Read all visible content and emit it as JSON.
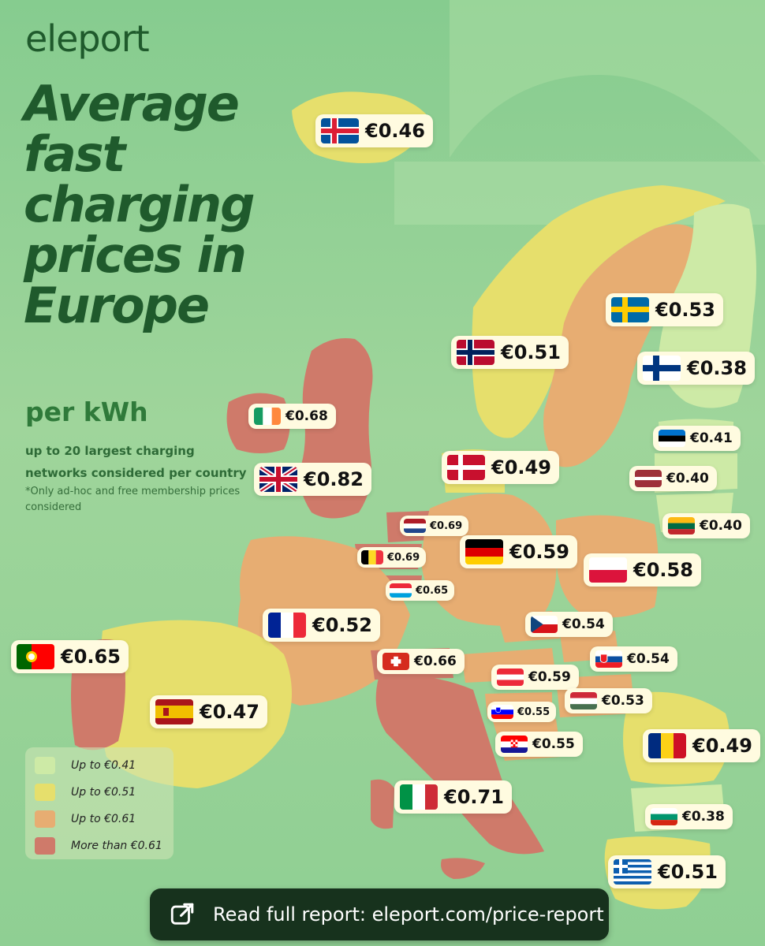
{
  "brand": {
    "logo_text": "eleport"
  },
  "title": "Average fast charging prices in Europe",
  "subtitle": "per kWh",
  "note": "up to 20 largest charging networks considered per country",
  "note_secondary": "*Only ad-hoc and free membership prices considered",
  "legend": [
    {
      "label": "Up to €0.41",
      "color": "#cdeaa6"
    },
    {
      "label": "Up to €0.51",
      "color": "#e6df6c"
    },
    {
      "label": "Up to €0.61",
      "color": "#e7ad72"
    },
    {
      "label": "More than €0.61",
      "color": "#cf7a6a"
    }
  ],
  "countries": [
    {
      "name": "Iceland",
      "flag": "iceland-flag-icon",
      "price": "€0.46"
    },
    {
      "name": "Sweden",
      "flag": "sweden-flag-icon",
      "price": "€0.53"
    },
    {
      "name": "Norway",
      "flag": "norway-flag-icon",
      "price": "€0.51"
    },
    {
      "name": "Finland",
      "flag": "finland-flag-icon",
      "price": "€0.38"
    },
    {
      "name": "Ireland",
      "flag": "ireland-flag-icon",
      "price": "€0.68"
    },
    {
      "name": "Estonia",
      "flag": "estonia-flag-icon",
      "price": "€0.41"
    },
    {
      "name": "Denmark",
      "flag": "denmark-flag-icon",
      "price": "€0.49"
    },
    {
      "name": "United Kingdom",
      "flag": "uk-flag-icon",
      "price": "€0.82"
    },
    {
      "name": "Latvia",
      "flag": "latvia-flag-icon",
      "price": "€0.40"
    },
    {
      "name": "Netherlands",
      "flag": "netherlands-flag-icon",
      "price": "€0.69"
    },
    {
      "name": "Lithuania",
      "flag": "lithuania-flag-icon",
      "price": "€0.40"
    },
    {
      "name": "Belgium",
      "flag": "belgium-flag-icon",
      "price": "€0.69"
    },
    {
      "name": "Germany",
      "flag": "germany-flag-icon",
      "price": "€0.59"
    },
    {
      "name": "Poland",
      "flag": "poland-flag-icon",
      "price": "€0.58"
    },
    {
      "name": "Luxembourg",
      "flag": "luxembourg-flag-icon",
      "price": "€0.65"
    },
    {
      "name": "France",
      "flag": "france-flag-icon",
      "price": "€0.52"
    },
    {
      "name": "Czechia",
      "flag": "czechia-flag-icon",
      "price": "€0.54"
    },
    {
      "name": "Portugal",
      "flag": "portugal-flag-icon",
      "price": "€0.65"
    },
    {
      "name": "Switzerland",
      "flag": "switzerland-flag-icon",
      "price": "€0.66"
    },
    {
      "name": "Slovakia",
      "flag": "slovakia-flag-icon",
      "price": "€0.54"
    },
    {
      "name": "Austria",
      "flag": "austria-flag-icon",
      "price": "€0.59"
    },
    {
      "name": "Hungary",
      "flag": "hungary-flag-icon",
      "price": "€0.53"
    },
    {
      "name": "Spain",
      "flag": "spain-flag-icon",
      "price": "€0.47"
    },
    {
      "name": "Slovenia",
      "flag": "slovenia-flag-icon",
      "price": "€0.55"
    },
    {
      "name": "Croatia",
      "flag": "croatia-flag-icon",
      "price": "€0.55"
    },
    {
      "name": "Romania",
      "flag": "romania-flag-icon",
      "price": "€0.49"
    },
    {
      "name": "Italy",
      "flag": "italy-flag-icon",
      "price": "€0.71"
    },
    {
      "name": "Bulgaria",
      "flag": "bulgaria-flag-icon",
      "price": "€0.38"
    },
    {
      "name": "Greece",
      "flag": "greece-flag-icon",
      "price": "€0.51"
    }
  ],
  "cta": {
    "label": "Read full report: eleport.com/price-report",
    "icon": "external-link-icon"
  }
}
